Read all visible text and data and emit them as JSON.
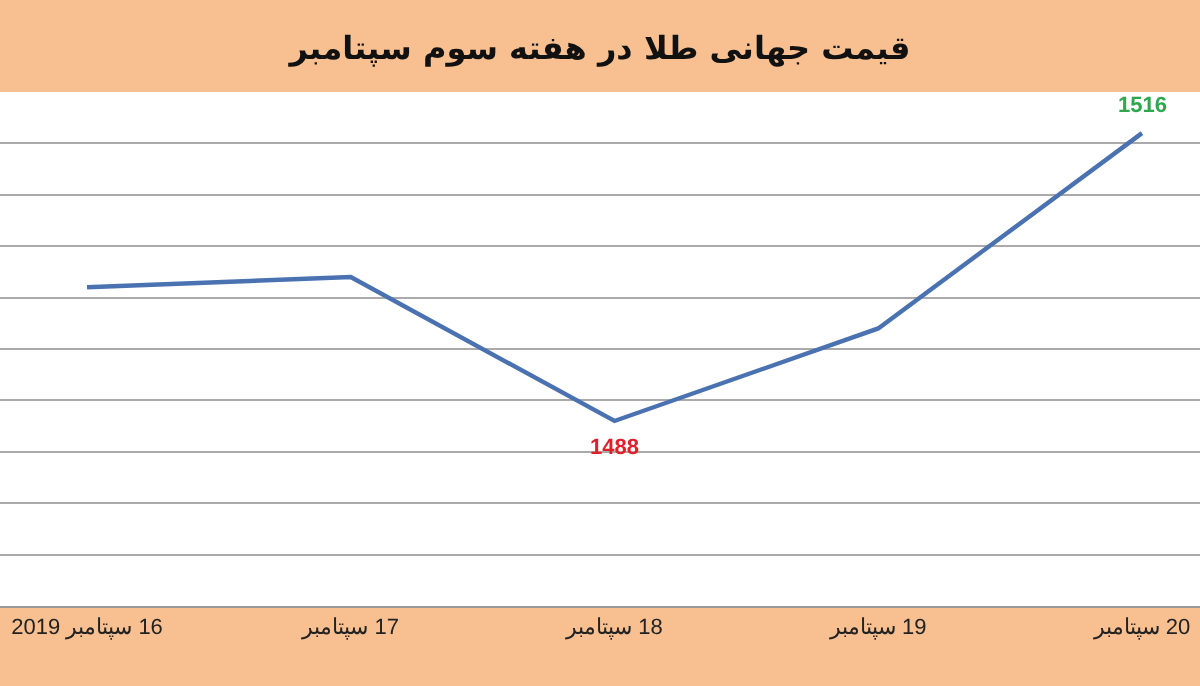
{
  "chart_data": {
    "type": "line",
    "title": "قیمت جهانی طلا در هفته سوم سپتامبر",
    "categories": [
      "16 سپتامبر 2019",
      "17 سپتامبر",
      "18 سپتامبر",
      "19 سپتامبر",
      "20 سپتامبر"
    ],
    "series": [
      {
        "color": "#4a72b0",
        "values": [
          1501,
          1502,
          1488,
          1497,
          1516
        ],
        "value_labels": [
          null,
          null,
          "1488",
          null,
          "1516"
        ]
      }
    ],
    "ylim": [
      1470,
      1520
    ],
    "yticks": [
      {
        "value": 1475,
        "label": null
      },
      {
        "value": 1480,
        "label": null
      },
      {
        "value": 1485,
        "label": null
      },
      {
        "value": 1490,
        "label": null
      },
      {
        "value": 1495,
        "label": null
      },
      {
        "value": 1500,
        "label": null
      },
      {
        "value": 1505,
        "label": null
      },
      {
        "value": 1510,
        "label": null
      },
      {
        "value": 1515,
        "label": null
      }
    ],
    "grid": "y",
    "marker": "none",
    "line_style": "solid",
    "tick_labels": "x"
  }
}
